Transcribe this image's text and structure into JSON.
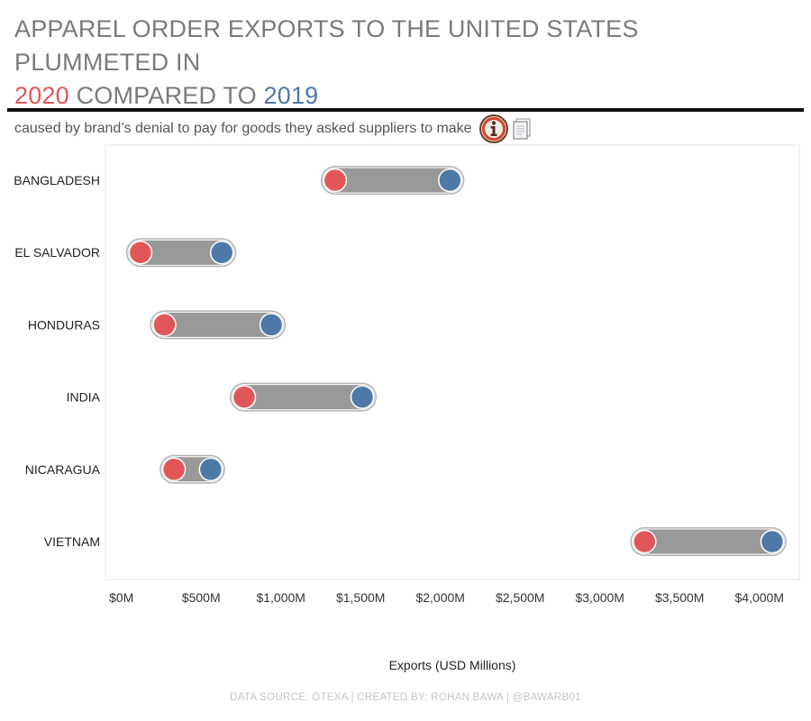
{
  "header": {
    "title_part1": "APPAREL ORDER EXPORTS TO THE UNITED STATES PLUMMETED IN",
    "title_year_a": "2020",
    "title_mid": " COMPARED TO ",
    "title_year_b": "2019",
    "subtitle": "caused by brand’s denial to pay for goods they asked suppliers to make",
    "info_icon": "info-icon",
    "doc_icon": "document-icon"
  },
  "colors": {
    "y2020": "#e15759",
    "y2019": "#4e79a7",
    "bar": "#999999",
    "title": "#7a7a7a"
  },
  "chart_data": {
    "type": "dumbbell",
    "categories": [
      "BANGLADESH",
      "EL SALVADOR",
      "HONDURAS",
      "INDIA",
      "NICARAGUA",
      "VIETNAM"
    ],
    "series": [
      {
        "name": "2020",
        "values": [
          1340,
          120,
          270,
          770,
          330,
          3280
        ]
      },
      {
        "name": "2019",
        "values": [
          2060,
          630,
          940,
          1510,
          560,
          4080
        ]
      }
    ],
    "xlabel": "Exports (USD Millions)",
    "xlim": [
      -100,
      4250
    ],
    "xticks": [
      0,
      500,
      1000,
      1500,
      2000,
      2500,
      3000,
      3500,
      4000
    ],
    "xtick_labels": [
      "$0M",
      "$500M",
      "$1,000M",
      "$1,500M",
      "$2,000M",
      "$2,500M",
      "$3,000M",
      "$3,500M",
      "$4,000M"
    ],
    "grid": false
  },
  "footer": {
    "text": "DATA SOURCE: OTEXA  |  CREATED BY: ROHAN BAWA  |  @BAWARB01"
  }
}
